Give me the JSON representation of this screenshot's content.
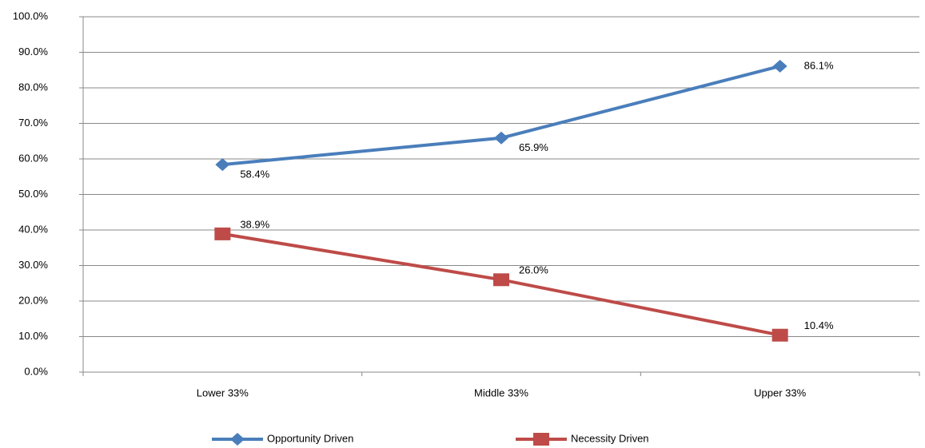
{
  "chart_data": {
    "type": "line",
    "categories": [
      "Lower 33%",
      "Middle 33%",
      "Upper 33%"
    ],
    "series": [
      {
        "name": "Opportunity Driven",
        "color": "#4a7ebb",
        "marker": "diamond",
        "values": [
          58.4,
          65.9,
          86.1
        ],
        "value_labels": [
          "58.4%",
          "65.9%",
          "86.1%"
        ]
      },
      {
        "name": "Necessity Driven",
        "color": "#be4b48",
        "marker": "square",
        "values": [
          38.9,
          26.0,
          10.4
        ],
        "value_labels": [
          "38.9%",
          "26.0%",
          "10.4%"
        ]
      }
    ],
    "ylim": [
      0,
      100
    ],
    "yticks": [
      {
        "value": 0,
        "label": "0.0%"
      },
      {
        "value": 10,
        "label": "10.0%"
      },
      {
        "value": 20,
        "label": "20.0%"
      },
      {
        "value": 30,
        "label": "30.0%"
      },
      {
        "value": 40,
        "label": "40.0%"
      },
      {
        "value": 50,
        "label": "50.0%"
      },
      {
        "value": 60,
        "label": "60.0%"
      },
      {
        "value": 70,
        "label": "70.0%"
      },
      {
        "value": 80,
        "label": "80.0%"
      },
      {
        "value": 90,
        "label": "90.0%"
      },
      {
        "value": 100,
        "label": "100.0%"
      }
    ],
    "grid": true,
    "legend": "bottom"
  }
}
